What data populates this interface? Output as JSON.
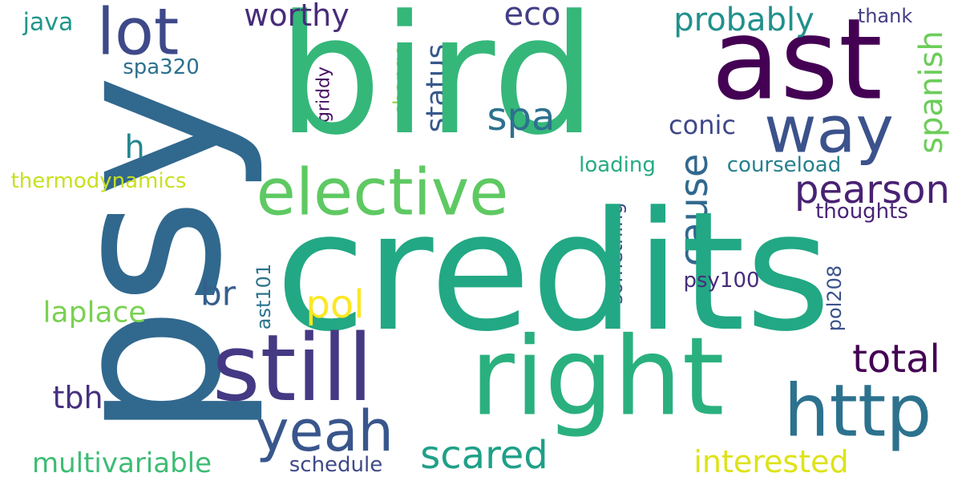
{
  "words": [
    {
      "text": "psy",
      "color": "#31688e",
      "rotated": true
    },
    {
      "text": "credits",
      "color": "#22a884",
      "rotated": false
    },
    {
      "text": "bird",
      "color": "#35b779",
      "rotated": false
    },
    {
      "text": "ast",
      "color": "#440154",
      "rotated": false
    },
    {
      "text": "right",
      "color": "#2ab07f",
      "rotated": false
    },
    {
      "text": "still",
      "color": "#443983",
      "rotated": false
    },
    {
      "text": "elective",
      "color": "#5ec962",
      "rotated": false
    },
    {
      "text": "http",
      "color": "#2c728e",
      "rotated": false
    },
    {
      "text": "way",
      "color": "#3b528b",
      "rotated": false
    },
    {
      "text": "yeah",
      "color": "#39568c",
      "rotated": false
    },
    {
      "text": "lot",
      "color": "#3e4989",
      "rotated": false
    },
    {
      "text": "pearson",
      "color": "#482173",
      "rotated": false
    },
    {
      "text": "scared",
      "color": "#1fa088",
      "rotated": false
    },
    {
      "text": "total",
      "color": "#440154",
      "rotated": false
    },
    {
      "text": "probably",
      "color": "#21908d",
      "rotated": false
    },
    {
      "text": "interested",
      "color": "#dde318",
      "rotated": false
    },
    {
      "text": "multivariable",
      "color": "#3dbc74",
      "rotated": false
    },
    {
      "text": "cause",
      "color": "#31688e",
      "rotated": true
    },
    {
      "text": "eco",
      "color": "#433e85",
      "rotated": false
    },
    {
      "text": "worthy",
      "color": "#472c7a",
      "rotated": false
    },
    {
      "text": "spanish",
      "color": "#6ccd5a",
      "rotated": true
    },
    {
      "text": "spa",
      "color": "#2d718e",
      "rotated": false
    },
    {
      "text": "pol",
      "color": "#fde725",
      "rotated": false
    },
    {
      "text": "status",
      "color": "#38588c",
      "rotated": true
    },
    {
      "text": "tbh",
      "color": "#46307e",
      "rotated": false
    },
    {
      "text": "laplace",
      "color": "#7ad151",
      "rotated": false
    },
    {
      "text": "br",
      "color": "#355f8d",
      "rotated": false
    },
    {
      "text": "h",
      "color": "#24868e",
      "rotated": false
    },
    {
      "text": "conic",
      "color": "#3f4889",
      "rotated": false
    },
    {
      "text": "java",
      "color": "#1f968b",
      "rotated": false
    },
    {
      "text": "courseload",
      "color": "#277f8e",
      "rotated": false
    },
    {
      "text": "thermodynamics",
      "color": "#c8e020",
      "rotated": false
    },
    {
      "text": "thoughts",
      "color": "#482576",
      "rotated": false
    },
    {
      "text": "loading",
      "color": "#25ac82",
      "rotated": false
    },
    {
      "text": "psy100",
      "color": "#472d7b",
      "rotated": false
    },
    {
      "text": "something",
      "color": "#3e4989",
      "rotated": true
    },
    {
      "text": "spa320",
      "color": "#2d708e",
      "rotated": false
    },
    {
      "text": "change",
      "color": "#95d840",
      "rotated": true
    },
    {
      "text": "griddy",
      "color": "#471063",
      "rotated": true
    },
    {
      "text": "ast101",
      "color": "#2c738e",
      "rotated": true
    },
    {
      "text": "pol208",
      "color": "#3b528b",
      "rotated": true
    },
    {
      "text": "schedule",
      "color": "#3e4a89",
      "rotated": false
    },
    {
      "text": "thank",
      "color": "#433e85",
      "rotated": false
    }
  ]
}
